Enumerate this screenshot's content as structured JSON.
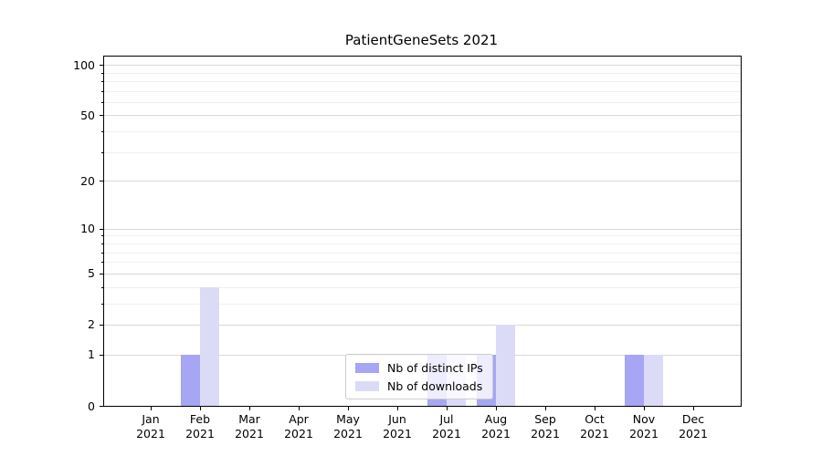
{
  "title": "PatientGeneSets 2021",
  "chart_data": {
    "type": "bar",
    "title": "PatientGeneSets 2021",
    "xlabel": "",
    "ylabel": "",
    "categories": [
      "Jan 2021",
      "Feb 2021",
      "Mar 2021",
      "Apr 2021",
      "May 2021",
      "Jun 2021",
      "Jul 2021",
      "Aug 2021",
      "Sep 2021",
      "Oct 2021",
      "Nov 2021",
      "Dec 2021"
    ],
    "x_tick_months": [
      "Jan",
      "Feb",
      "Mar",
      "Apr",
      "May",
      "Jun",
      "Jul",
      "Aug",
      "Sep",
      "Oct",
      "Nov",
      "Dec"
    ],
    "x_tick_year": "2021",
    "series": [
      {
        "name": "Nb of distinct IPs",
        "color": "#a6a6f4",
        "values": [
          0,
          1,
          0,
          0,
          0,
          0,
          1,
          1,
          0,
          0,
          1,
          0
        ]
      },
      {
        "name": "Nb of downloads",
        "color": "#dbdbf8",
        "values": [
          0,
          4,
          0,
          0,
          0,
          0,
          1,
          2,
          0,
          0,
          1,
          0
        ]
      }
    ],
    "y_axis": {
      "scale": "log1p",
      "major_ticks": [
        0,
        1,
        2,
        5,
        10,
        20,
        50,
        100
      ],
      "minor_ticks": [
        3,
        4,
        6,
        7,
        8,
        9,
        30,
        40,
        60,
        70,
        80,
        90
      ],
      "ylim": [
        0,
        112
      ]
    },
    "legend": {
      "position": "lower center",
      "frame_alpha": 0.8
    },
    "grid": "horizontal",
    "colors": {
      "major_grid": "#d8d8d8",
      "minor_grid": "#efefef",
      "axis": "#000000",
      "text": "#000000",
      "legend_border": "#cccccc"
    }
  }
}
